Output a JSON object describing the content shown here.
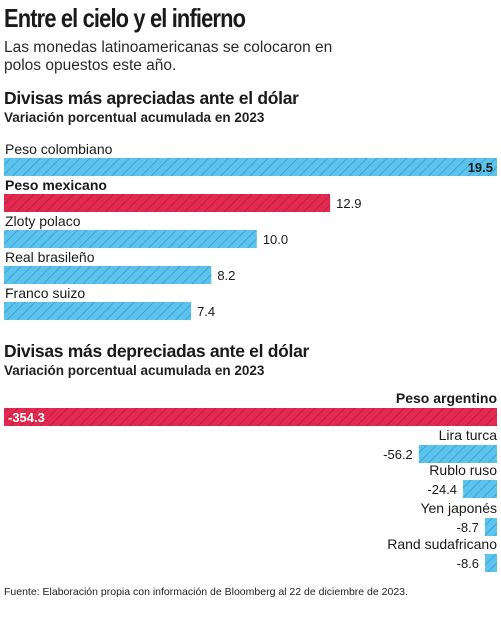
{
  "header": {
    "title": "Entre el cielo y el infierno",
    "subtitle": "Las monedas latinoamericanas se colocaron en polos opuestos este año."
  },
  "colors": {
    "highlight": "#e2294f",
    "bar": "#5ec3ec",
    "text": "#1a1a1a"
  },
  "chart_data": [
    {
      "type": "bar",
      "orientation": "horizontal",
      "title": "Divisas más apreciadas ante el dólar",
      "subtitle": "Variación porcentual acumulada en 2023",
      "categories": [
        "Peso colombiano",
        "Peso mexicano",
        "Zloty polaco",
        "Real brasileño",
        "Franco suizo"
      ],
      "values": [
        19.5,
        12.9,
        10.0,
        8.2,
        7.4
      ],
      "value_labels": [
        "19.5",
        "12.9",
        "10.0",
        "8.2",
        "7.4"
      ],
      "highlight": [
        "Peso mexicano"
      ],
      "xlim": [
        0,
        19.5
      ]
    },
    {
      "type": "bar",
      "orientation": "horizontal",
      "title": "Divisas más depreciadas ante el dólar",
      "subtitle": "Variación porcentual acumulada en 2023",
      "categories": [
        "Peso argentino",
        "Lira turca",
        "Rublo ruso",
        "Yen japonés",
        "Rand sudafricano"
      ],
      "values": [
        -354.3,
        -56.2,
        -24.4,
        -8.7,
        -8.6
      ],
      "value_labels": [
        "-354.3",
        "-56.2",
        "-24.4",
        "-8.7",
        "-8.6"
      ],
      "highlight": [
        "Peso argentino"
      ],
      "xlim": [
        -354.3,
        0
      ]
    }
  ],
  "footer": {
    "source": "Fuente: Elaboración propia con información de Bloomberg al 22 de diciembre de 2023."
  }
}
